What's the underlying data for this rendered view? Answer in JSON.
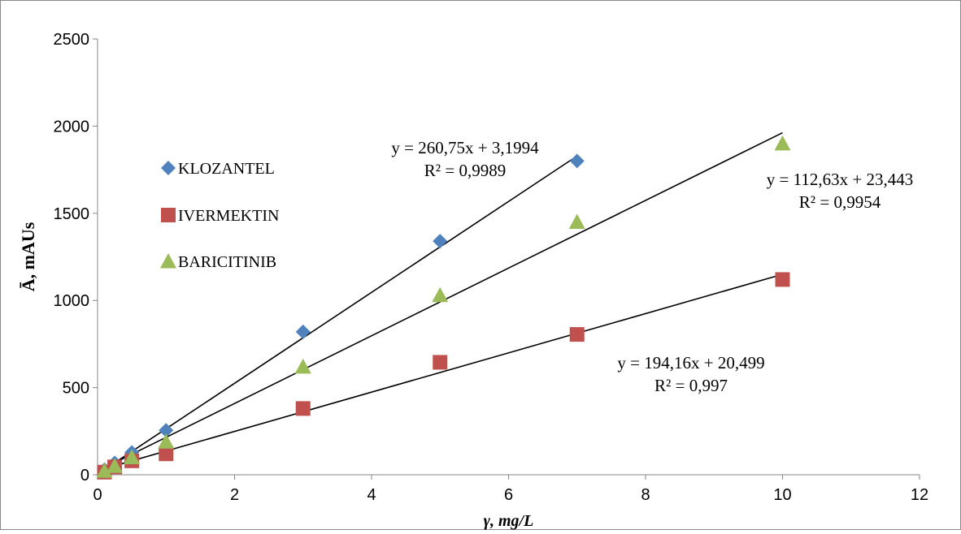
{
  "chart_data": {
    "type": "scatter",
    "title": "",
    "xlabel": "γ, mg/L",
    "ylabel": "Ā, mAUs",
    "xlim": [
      0,
      12
    ],
    "ylim": [
      0,
      2500
    ],
    "x_ticks": [
      0,
      2,
      4,
      6,
      8,
      10,
      12
    ],
    "y_ticks": [
      0,
      500,
      1000,
      1500,
      2000,
      2500
    ],
    "grid": false,
    "legend_position": "left",
    "series": [
      {
        "name": "KLOZANTEL",
        "marker": "diamond",
        "color": "#4f81bd",
        "points": [
          [
            0.1,
            29
          ],
          [
            0.25,
            68
          ],
          [
            0.5,
            128
          ],
          [
            1,
            255
          ],
          [
            3,
            820
          ],
          [
            5,
            1340
          ],
          [
            7,
            1800
          ]
        ],
        "trendline": {
          "slope": 260.75,
          "intercept": 3.1994,
          "x_range": [
            0.1,
            7
          ]
        },
        "equation": "y = 260,75x + 3,1994",
        "r2": "R² = 0,9989"
      },
      {
        "name": "IVERMEKTIN",
        "marker": "square",
        "color": "#c0504d",
        "points": [
          [
            0.1,
            15
          ],
          [
            0.25,
            45
          ],
          [
            0.5,
            80
          ],
          [
            1,
            120
          ],
          [
            3,
            380
          ],
          [
            5,
            645
          ],
          [
            7,
            805
          ],
          [
            10,
            1120
          ]
        ],
        "trendline": {
          "slope": 112.63,
          "intercept": 23.443,
          "x_range": [
            0.1,
            10
          ]
        },
        "equation": "y = 112,63x + 23,443",
        "r2": "R² = 0,9954"
      },
      {
        "name": "BARICITINIB",
        "marker": "triangle",
        "color": "#9bbb59",
        "points": [
          [
            0.1,
            22
          ],
          [
            0.25,
            50
          ],
          [
            0.5,
            100
          ],
          [
            1,
            190
          ],
          [
            3,
            620
          ],
          [
            5,
            1030
          ],
          [
            7,
            1450
          ],
          [
            10,
            1900
          ]
        ],
        "trendline": {
          "slope": 194.16,
          "intercept": 20.499,
          "x_range": [
            0.1,
            10
          ]
        },
        "equation": "y = 194,16x + 20,499",
        "r2": "R² = 0,997"
      }
    ]
  }
}
